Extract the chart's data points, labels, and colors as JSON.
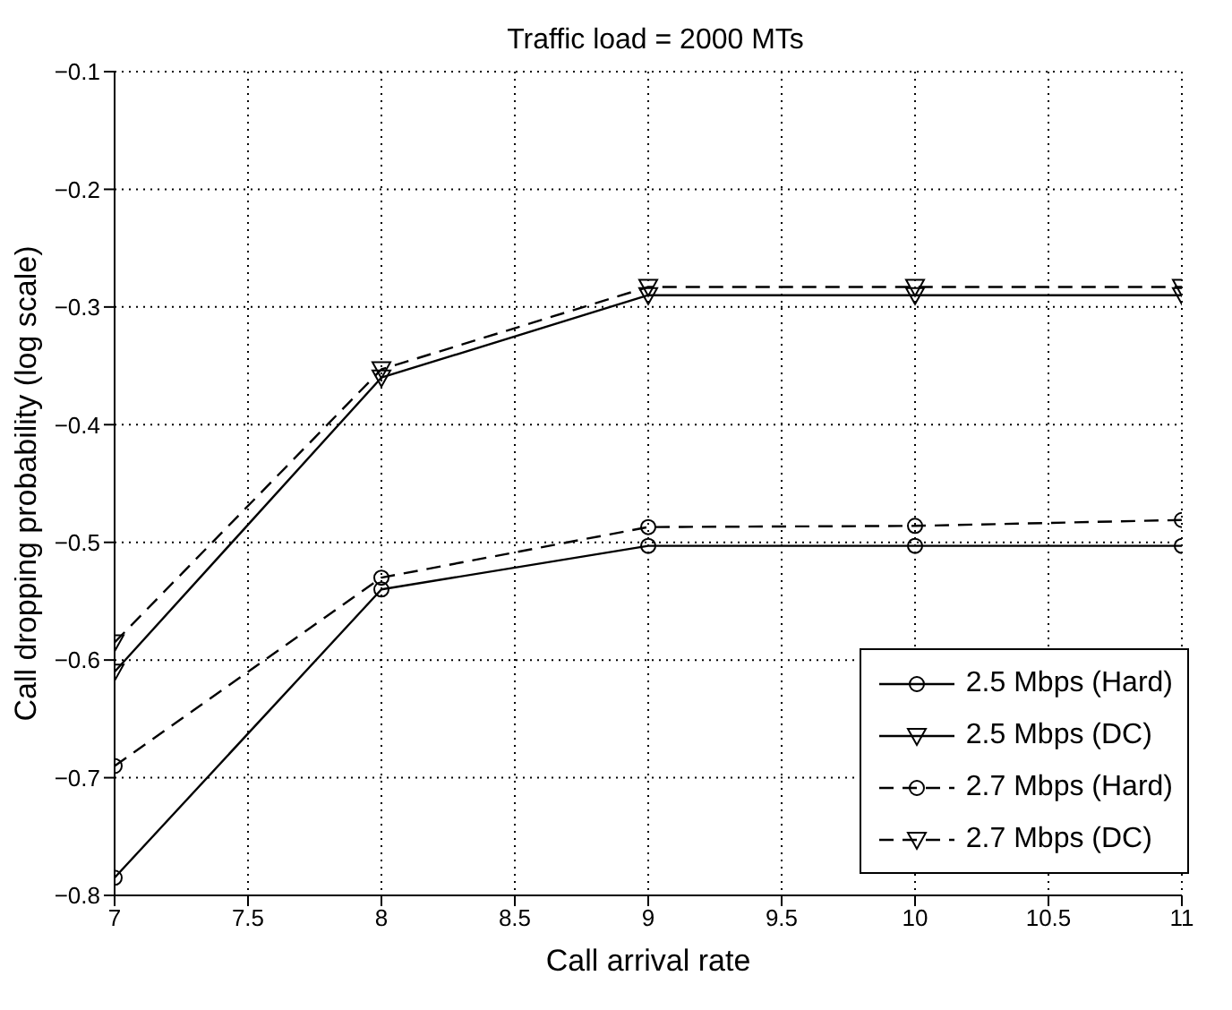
{
  "chart_data": {
    "type": "line",
    "title": "Traffic load = 2000 MTs",
    "xlabel": "Call arrival rate",
    "ylabel": "Call dropping probability (log scale)",
    "x": [
      7,
      8,
      9,
      10,
      11
    ],
    "series": [
      {
        "name": "2.5 Mbps (Hard)",
        "color": "#000000",
        "marker": "circle",
        "line_style": "solid",
        "values": [
          -0.785,
          -0.54,
          -0.503,
          -0.503,
          -0.503
        ]
      },
      {
        "name": "2.5 Mbps (DC)",
        "color": "#000000",
        "marker": "triangle",
        "line_style": "solid",
        "values": [
          -0.61,
          -0.36,
          -0.29,
          -0.29,
          -0.29
        ]
      },
      {
        "name": "2.7 Mbps (Hard)",
        "color": "#000000",
        "marker": "circle",
        "line_style": "dashed",
        "values": [
          -0.69,
          -0.53,
          -0.487,
          -0.486,
          -0.481
        ]
      },
      {
        "name": "2.7 Mbps (DC)",
        "color": "#000000",
        "marker": "triangle",
        "line_style": "dashed",
        "values": [
          -0.585,
          -0.353,
          -0.283,
          -0.283,
          -0.283
        ]
      }
    ],
    "xlim": [
      7,
      11
    ],
    "xticks": [
      7,
      7.5,
      8,
      8.5,
      9,
      9.5,
      10,
      10.5,
      11
    ],
    "ylim": [
      -0.8,
      -0.1
    ],
    "yticks": [
      -0.8,
      -0.7,
      -0.6,
      -0.5,
      -0.4,
      -0.3,
      -0.2,
      -0.1
    ],
    "grid": true,
    "legend": "bottom right"
  }
}
